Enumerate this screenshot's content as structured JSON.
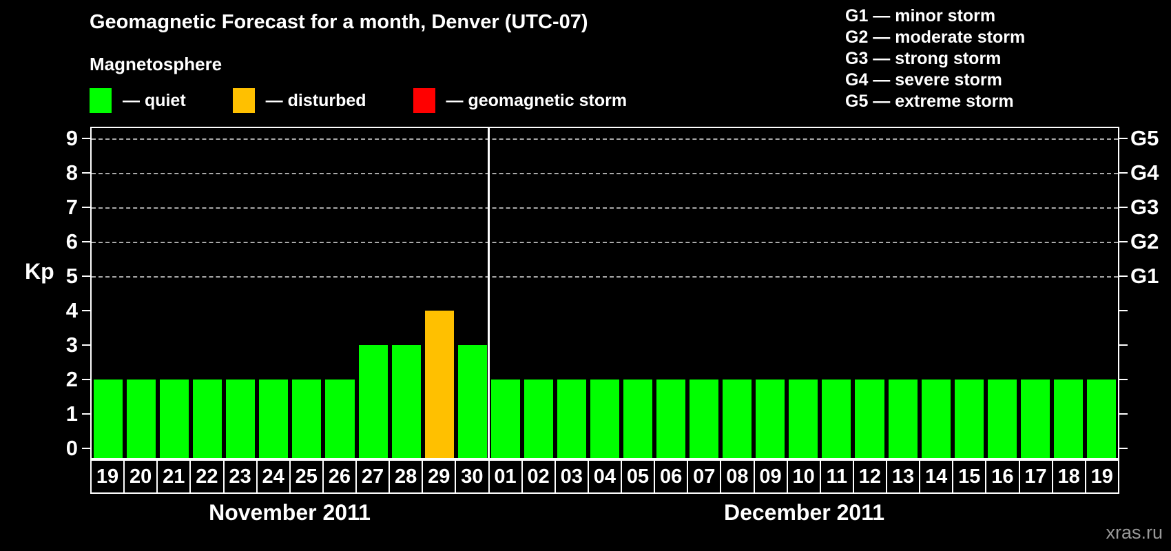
{
  "title": "Geomagnetic Forecast for a month, Denver (UTC-07)",
  "legend": {
    "title": "Magnetosphere",
    "items": [
      {
        "status": "quiet",
        "label": "— quiet",
        "color": "#00ff00"
      },
      {
        "status": "disturbed",
        "label": "— disturbed",
        "color": "#ffc000"
      },
      {
        "status": "storm",
        "label": "— geomagnetic storm",
        "color": "#ff0000"
      }
    ]
  },
  "g_scale_legend": {
    "items": [
      "G1 — minor storm",
      "G2 — moderate storm",
      "G3 — strong storm",
      "G4 — severe storm",
      "G5 — extreme storm"
    ]
  },
  "watermark": "xras.ru",
  "chart_data": {
    "type": "bar",
    "title": "Geomagnetic Forecast for a month, Denver (UTC-07)",
    "xlabel": "",
    "ylabel": "Kp",
    "ylim": [
      0,
      9
    ],
    "yticks": [
      0,
      1,
      2,
      3,
      4,
      5,
      6,
      7,
      8,
      9
    ],
    "gridlines_at": [
      5,
      6,
      7,
      8,
      9
    ],
    "grid": "dashed",
    "right_axis": [
      {
        "kp": 5,
        "label": "G1"
      },
      {
        "kp": 6,
        "label": "G2"
      },
      {
        "kp": 7,
        "label": "G3"
      },
      {
        "kp": 8,
        "label": "G4"
      },
      {
        "kp": 9,
        "label": "G5"
      }
    ],
    "bar_colors": {
      "quiet": "#00ff00",
      "disturbed": "#ffc000",
      "storm": "#ff0000"
    },
    "months": [
      {
        "label": "November 2011",
        "days": [
          {
            "day": "19",
            "kp": 2,
            "status": "quiet"
          },
          {
            "day": "20",
            "kp": 2,
            "status": "quiet"
          },
          {
            "day": "21",
            "kp": 2,
            "status": "quiet"
          },
          {
            "day": "22",
            "kp": 2,
            "status": "quiet"
          },
          {
            "day": "23",
            "kp": 2,
            "status": "quiet"
          },
          {
            "day": "24",
            "kp": 2,
            "status": "quiet"
          },
          {
            "day": "25",
            "kp": 2,
            "status": "quiet"
          },
          {
            "day": "26",
            "kp": 2,
            "status": "quiet"
          },
          {
            "day": "27",
            "kp": 3,
            "status": "quiet"
          },
          {
            "day": "28",
            "kp": 3,
            "status": "quiet"
          },
          {
            "day": "29",
            "kp": 4,
            "status": "disturbed"
          },
          {
            "day": "30",
            "kp": 3,
            "status": "quiet"
          }
        ]
      },
      {
        "label": "December 2011",
        "days": [
          {
            "day": "01",
            "kp": 2,
            "status": "quiet"
          },
          {
            "day": "02",
            "kp": 2,
            "status": "quiet"
          },
          {
            "day": "03",
            "kp": 2,
            "status": "quiet"
          },
          {
            "day": "04",
            "kp": 2,
            "status": "quiet"
          },
          {
            "day": "05",
            "kp": 2,
            "status": "quiet"
          },
          {
            "day": "06",
            "kp": 2,
            "status": "quiet"
          },
          {
            "day": "07",
            "kp": 2,
            "status": "quiet"
          },
          {
            "day": "08",
            "kp": 2,
            "status": "quiet"
          },
          {
            "day": "09",
            "kp": 2,
            "status": "quiet"
          },
          {
            "day": "10",
            "kp": 2,
            "status": "quiet"
          },
          {
            "day": "11",
            "kp": 2,
            "status": "quiet"
          },
          {
            "day": "12",
            "kp": 2,
            "status": "quiet"
          },
          {
            "day": "13",
            "kp": 2,
            "status": "quiet"
          },
          {
            "day": "14",
            "kp": 2,
            "status": "quiet"
          },
          {
            "day": "15",
            "kp": 2,
            "status": "quiet"
          },
          {
            "day": "16",
            "kp": 2,
            "status": "quiet"
          },
          {
            "day": "17",
            "kp": 2,
            "status": "quiet"
          },
          {
            "day": "18",
            "kp": 2,
            "status": "quiet"
          },
          {
            "day": "19",
            "kp": 2,
            "status": "quiet"
          }
        ]
      }
    ]
  }
}
